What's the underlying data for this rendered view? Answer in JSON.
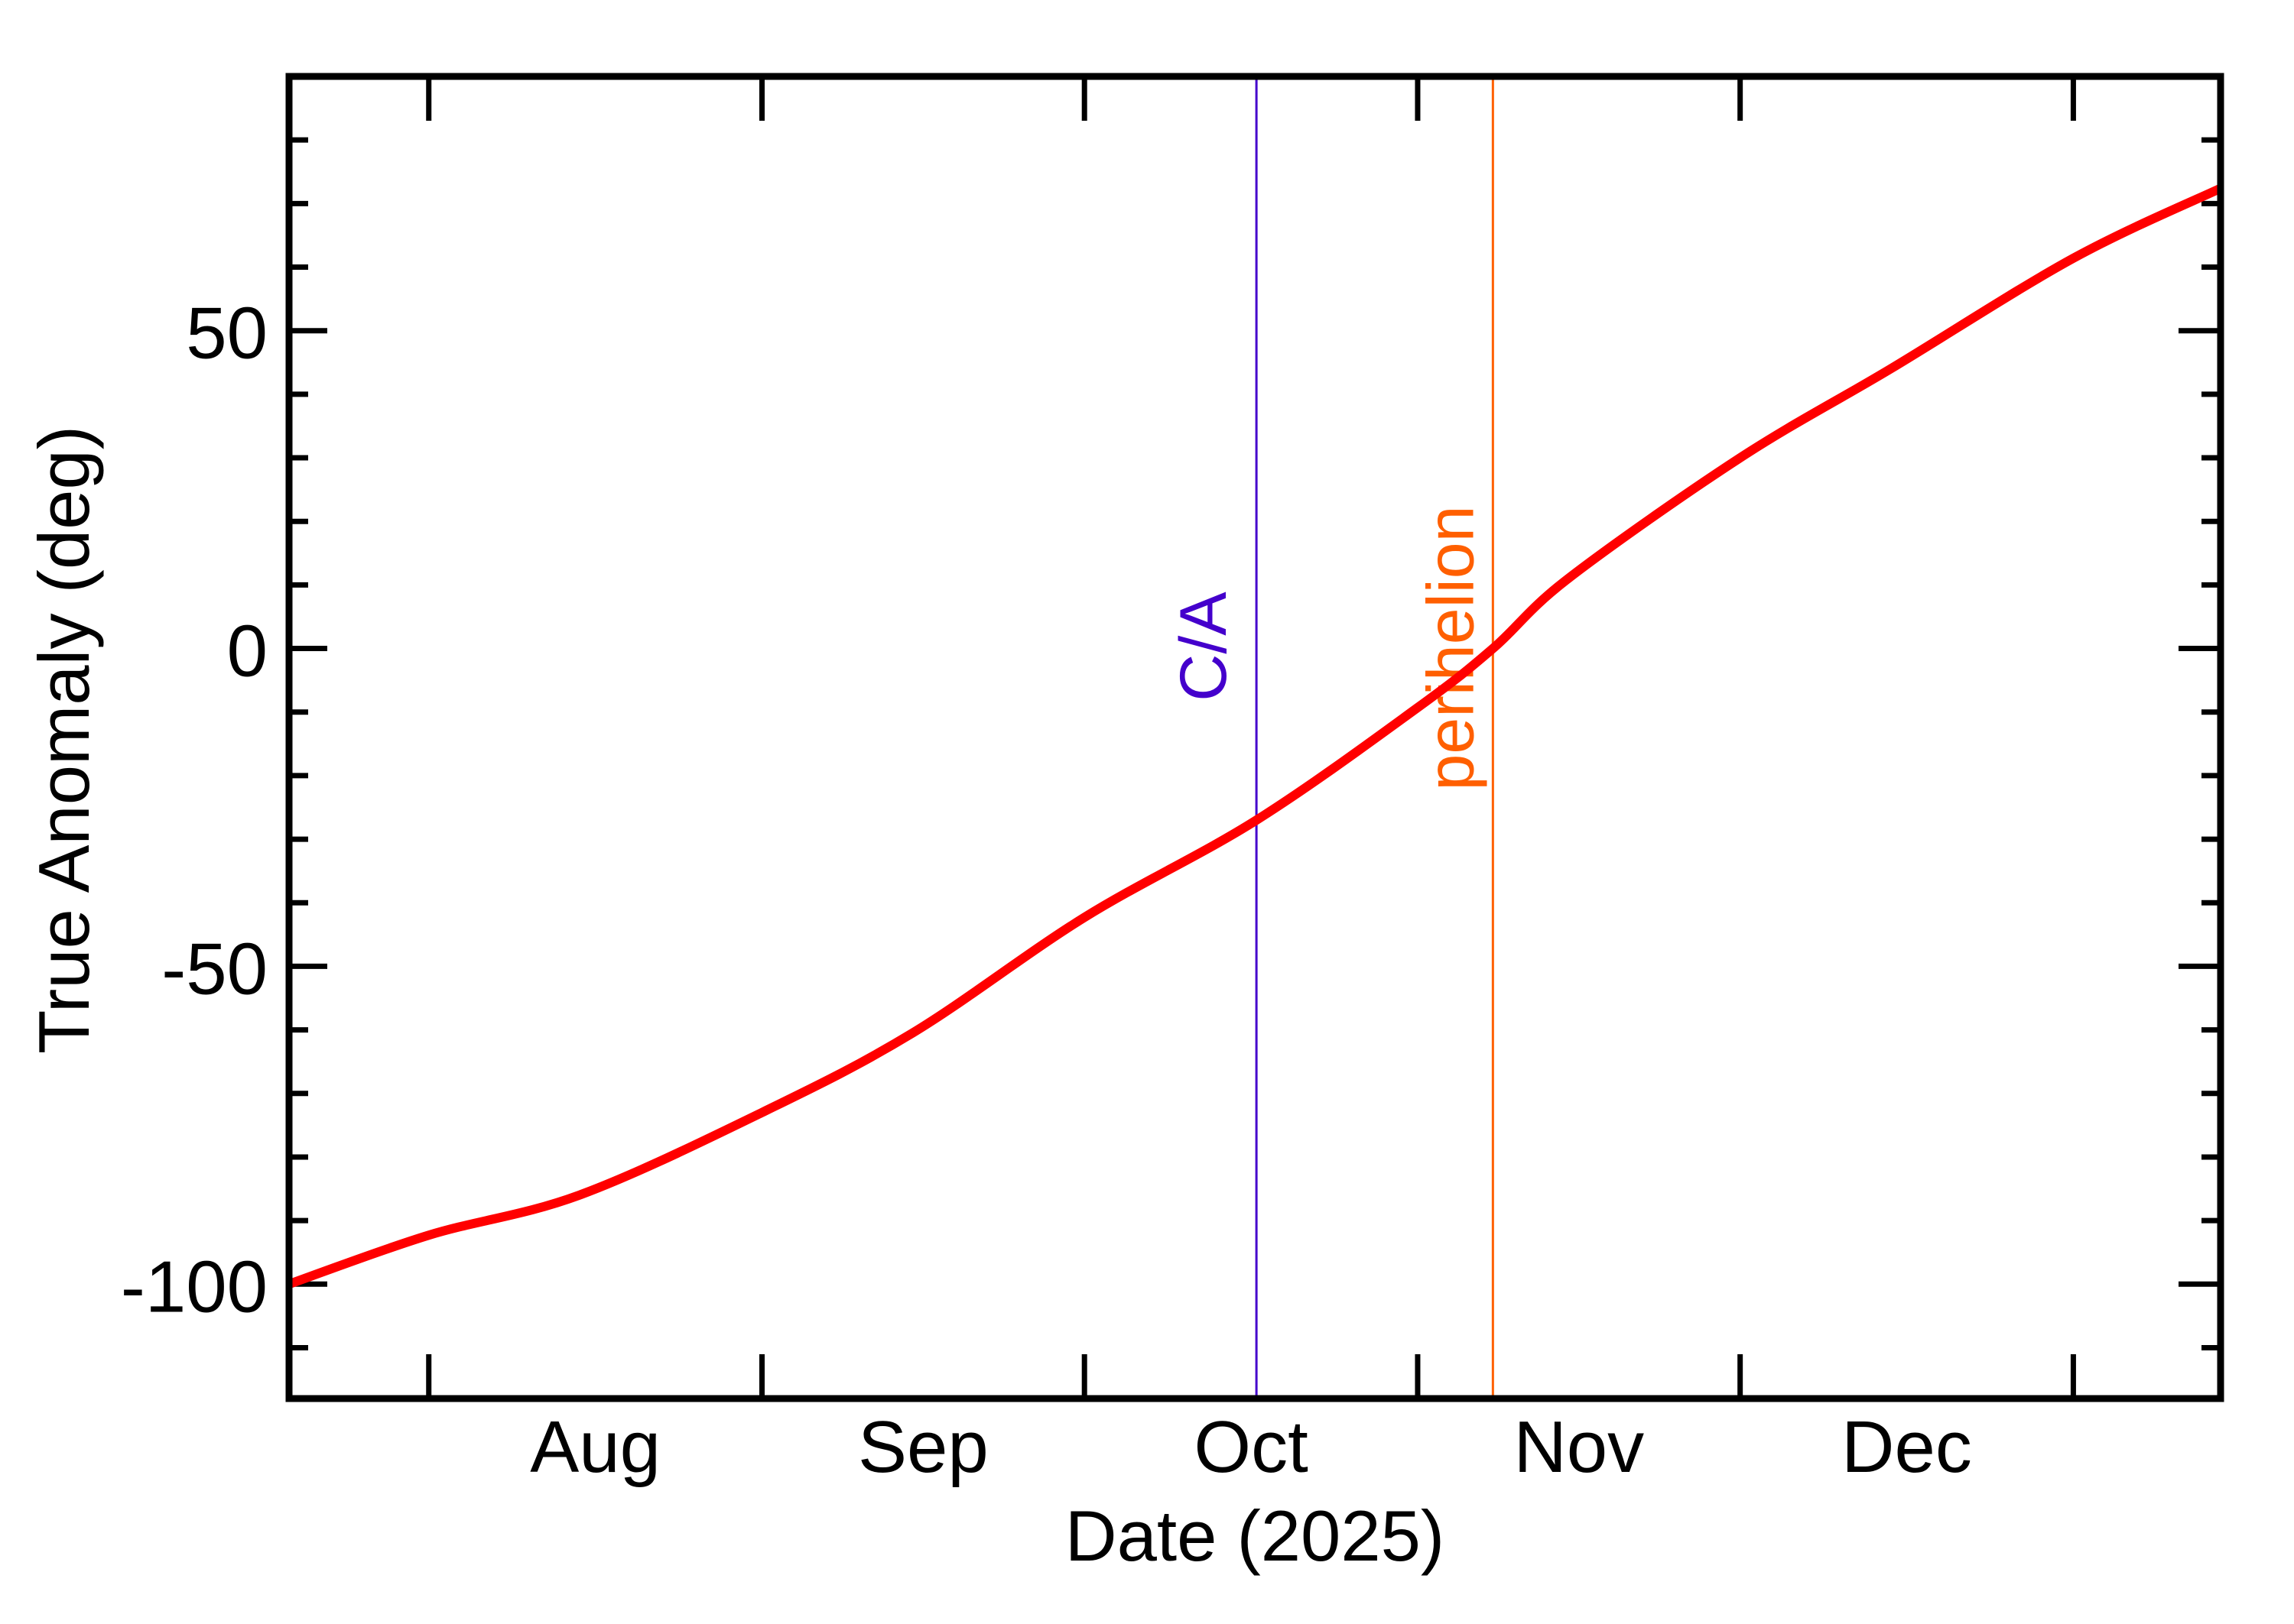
{
  "chart_data": {
    "type": "line",
    "title": "",
    "xlabel": "Date (2025)",
    "ylabel": "True Anomaly (deg)",
    "x_tick_labels": [
      "Aug",
      "Sep",
      "Oct",
      "Nov",
      "Dec"
    ],
    "y_tick_labels": [
      "-100",
      "-50",
      "0",
      "50"
    ],
    "y_major_ticks": [
      -100,
      -50,
      0,
      50
    ],
    "y_minor_step": 10,
    "ylim": [
      -118,
      90
    ],
    "xlim": [
      "2025-07-19",
      "2026-01-14"
    ],
    "grid": false,
    "legend": null,
    "month_ticks": [
      {
        "date": "2025-08-01",
        "day": 13
      },
      {
        "date": "2025-09-01",
        "day": 44
      },
      {
        "date": "2025-10-01",
        "day": 74
      },
      {
        "date": "2025-11-01",
        "day": 105
      },
      {
        "date": "2025-12-01",
        "day": 135
      },
      {
        "date": "2026-01-01",
        "day": 166
      }
    ],
    "month_label_days": [
      28.5,
      59,
      89.5,
      120,
      150.5
    ],
    "x_range_days": [
      0,
      179.7
    ],
    "series": [
      {
        "name": "True Anomaly",
        "color": "#ff0000",
        "x": [
          "2025-07-19",
          "2025-08-01",
          "2025-08-15",
          "2025-09-01",
          "2025-09-15",
          "2025-10-01",
          "2025-10-17",
          "2025-11-01",
          "2025-11-08",
          "2025-11-15",
          "2025-12-01",
          "2025-12-15",
          "2026-01-01",
          "2026-01-14"
        ],
        "days": [
          0,
          13,
          27,
          44,
          58,
          74,
          90,
          105,
          112,
          119,
          135,
          149,
          166,
          179.7
        ],
        "values": [
          -100,
          -92.3,
          -86,
          -73,
          -60.5,
          -42.3,
          -27,
          -9.3,
          0,
          11,
          30,
          44,
          61.4,
          72.4
        ]
      }
    ],
    "annotations": [
      {
        "label": "C/A",
        "date": "2025-10-17",
        "day": 90,
        "color": "#4400cc",
        "type": "vertical-line"
      },
      {
        "label": "perihelion",
        "date": "2025-11-08",
        "day": 112,
        "color": "#ff6000",
        "type": "vertical-line"
      }
    ]
  }
}
